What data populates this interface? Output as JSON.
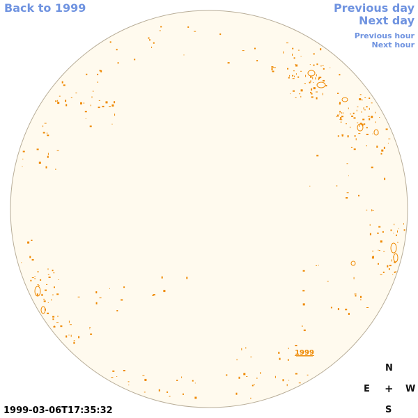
{
  "nav": {
    "back": "Back to 1999",
    "previous_day": "Previous day",
    "next_day": "Next day",
    "previous_hour": "Previous hour",
    "next_hour": "Next hour"
  },
  "disk": {
    "label": "1999",
    "fill_color": "#fffaee",
    "edge_color": "#b8ad98",
    "contour_color": "#ee8800"
  },
  "compass": {
    "n": "N",
    "e": "E",
    "center": "+",
    "w": "W",
    "s": "S"
  },
  "timestamp": "1999-03-06T17:35:32",
  "colors": {
    "link": "#6f93e0"
  }
}
